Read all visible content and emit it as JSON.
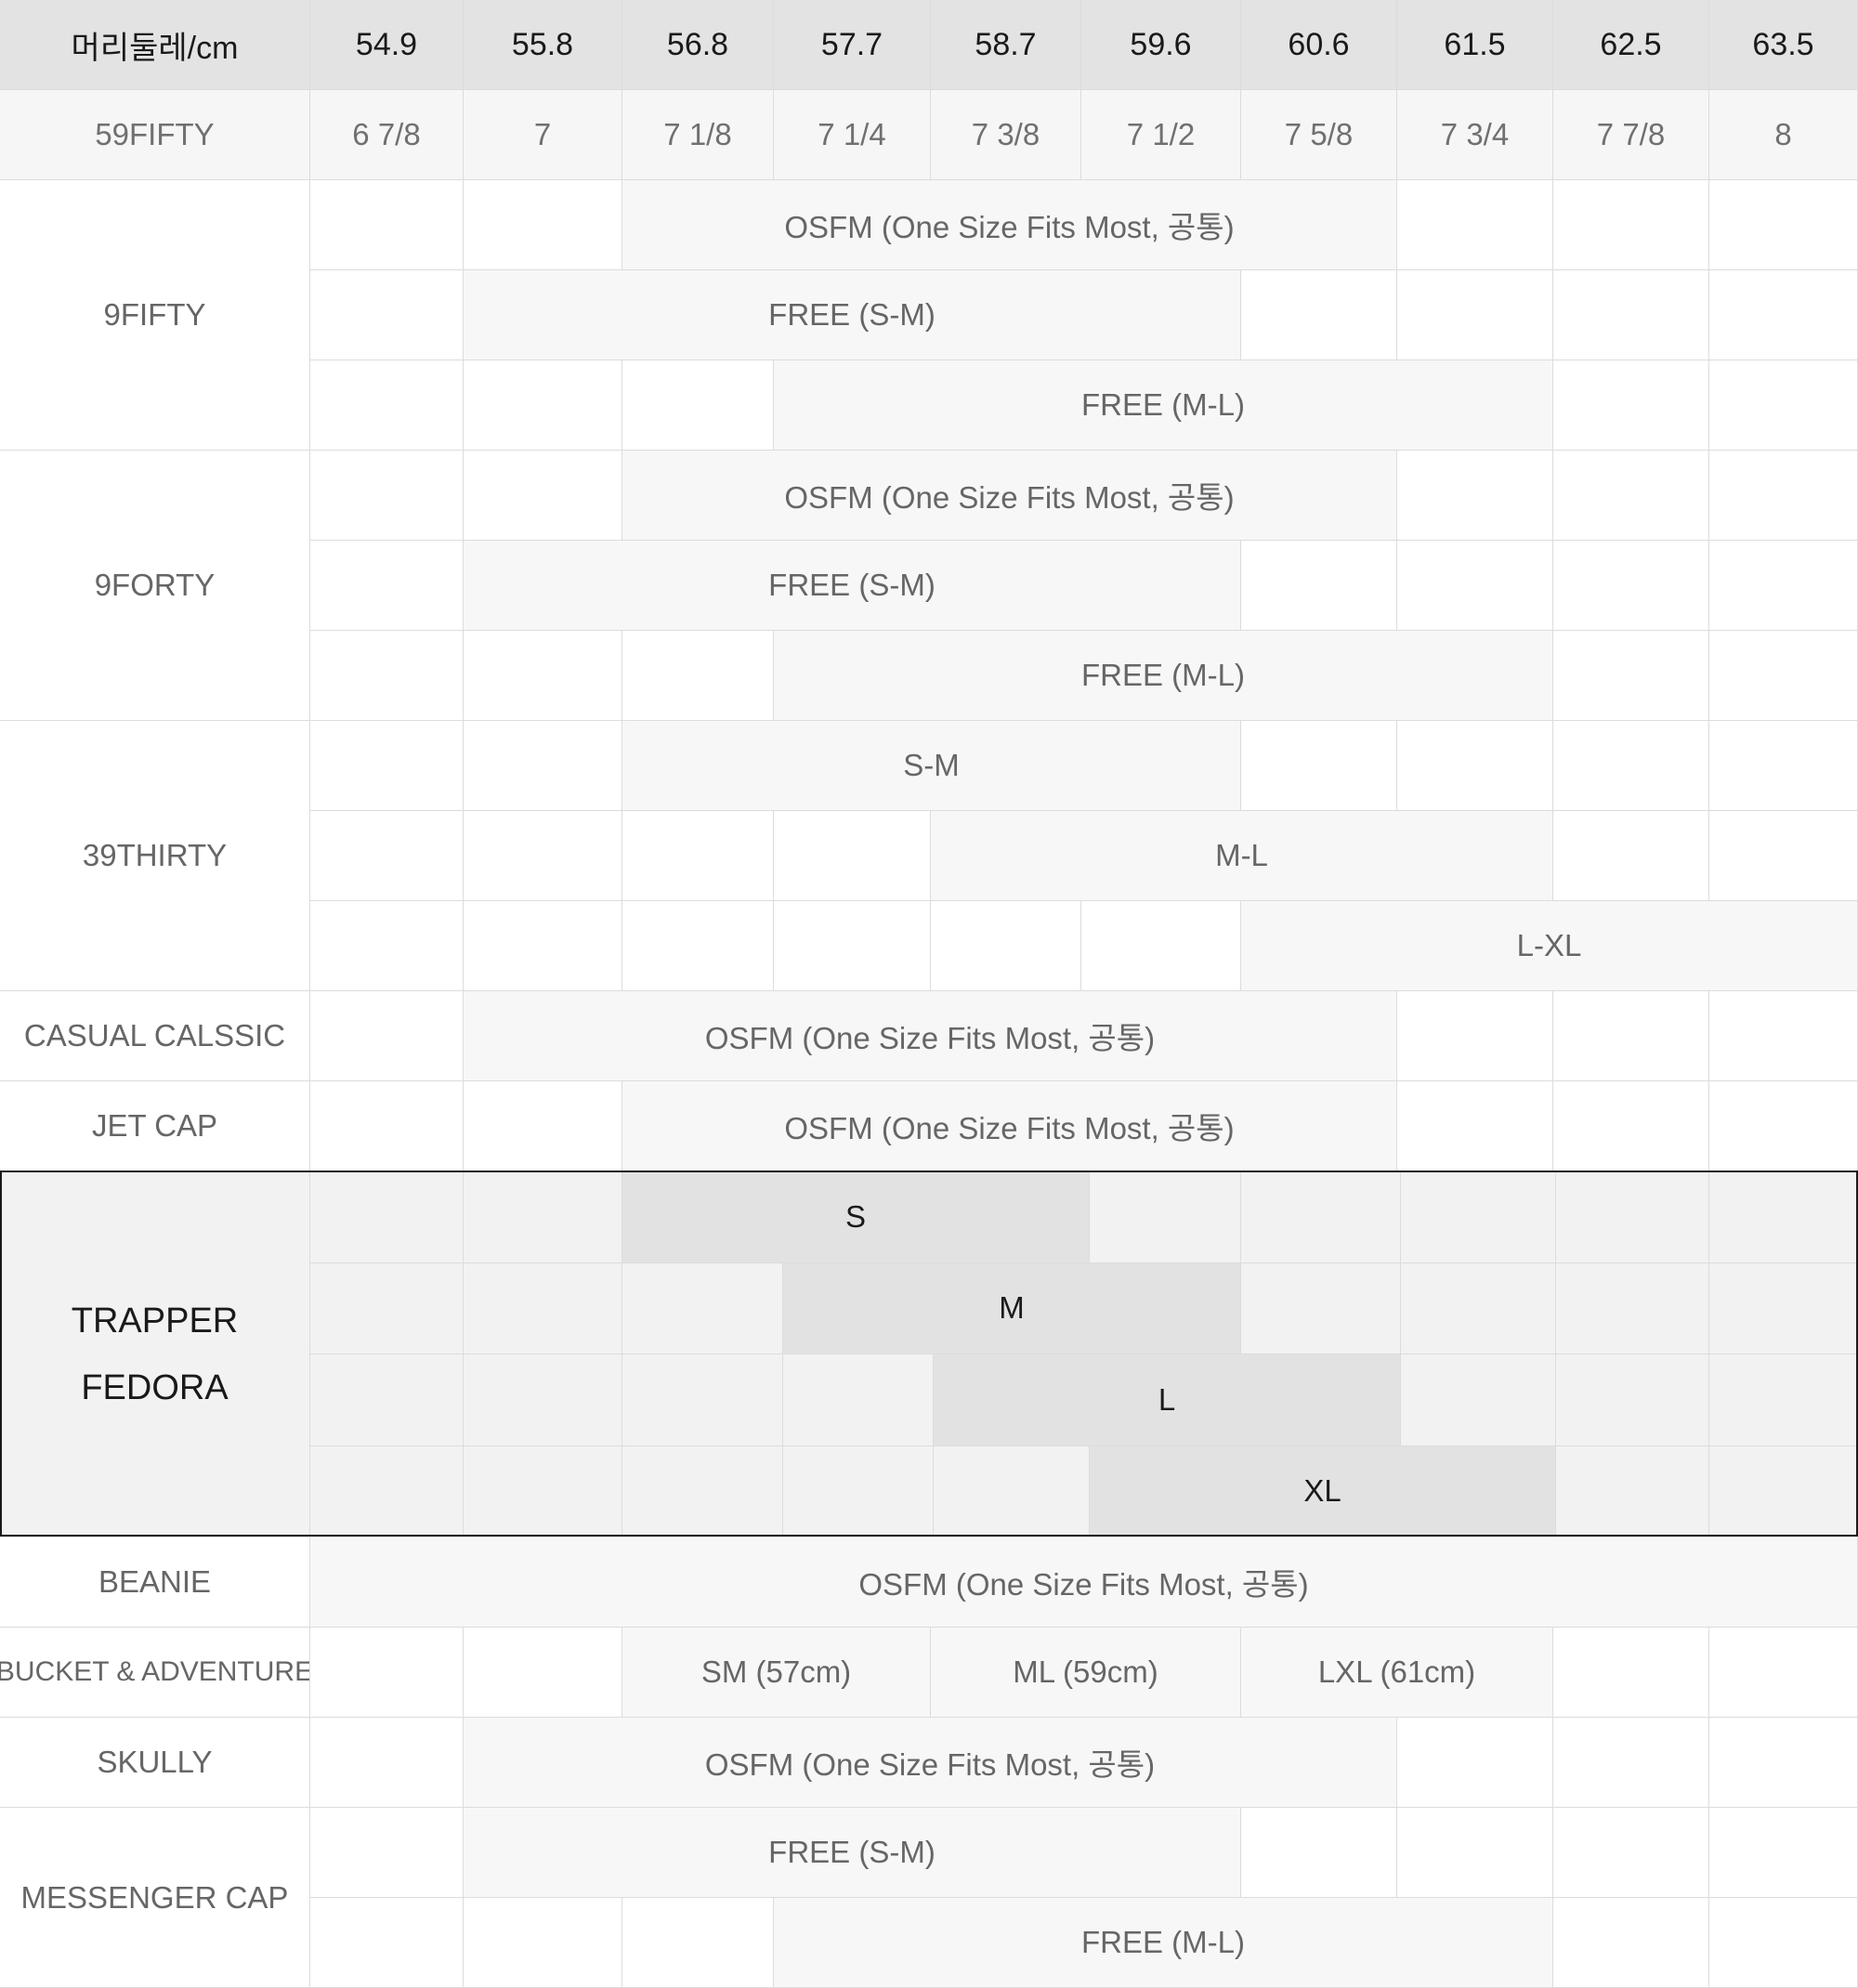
{
  "header": {
    "label": "머리둘레/cm",
    "cm": [
      "54.9",
      "55.8",
      "56.8",
      "57.7",
      "58.7",
      "59.6",
      "60.6",
      "61.5",
      "62.5",
      "63.5"
    ]
  },
  "fifty_nine_fifty": {
    "label": "59FIFTY",
    "inches": [
      "6 7/8",
      "7",
      "7 1/8",
      "7 1/4",
      "7 3/8",
      "7 1/2",
      "7 5/8",
      "7 3/4",
      "7 7/8",
      "8"
    ]
  },
  "rows": [
    {
      "label": "9FIFTY",
      "sizes": [
        {
          "text": "OSFM (One Size Fits Most, 공통)",
          "from": 2,
          "to": 6
        },
        {
          "text": "FREE (S-M)",
          "from": 1,
          "to": 5
        },
        {
          "text": "FREE (M-L)",
          "from": 3,
          "to": 7
        }
      ]
    },
    {
      "label": "9FORTY",
      "sizes": [
        {
          "text": "OSFM (One Size Fits Most, 공통)",
          "from": 2,
          "to": 6
        },
        {
          "text": "FREE (S-M)",
          "from": 1,
          "to": 5
        },
        {
          "text": "FREE (M-L)",
          "from": 3,
          "to": 7
        }
      ]
    },
    {
      "label": "39THIRTY",
      "sizes": [
        {
          "text": "S-M",
          "from": 2,
          "to": 5
        },
        {
          "text": "M-L",
          "from": 4,
          "to": 7
        },
        {
          "text": "L-XL",
          "from": 6,
          "to": 9
        }
      ]
    },
    {
      "label": "CASUAL CALSSIC",
      "sizes": [
        {
          "text": "OSFM (One Size Fits Most, 공통)",
          "from": 1,
          "to": 6
        }
      ]
    },
    {
      "label": "JET CAP",
      "sizes": [
        {
          "text": "OSFM (One Size Fits Most, 공통)",
          "from": 2,
          "to": 6
        }
      ]
    },
    {
      "label_lines": [
        "TRAPPER",
        "FEDORA"
      ],
      "trapper": true,
      "sizes": [
        {
          "text": "S",
          "from": 2,
          "to": 4
        },
        {
          "text": "M",
          "from": 3,
          "to": 5
        },
        {
          "text": "L",
          "from": 4,
          "to": 6
        },
        {
          "text": "XL",
          "from": 5,
          "to": 7
        }
      ]
    },
    {
      "label": "BEANIE",
      "sizes": [
        {
          "text": "OSFM (One Size Fits Most, 공통)",
          "from": 0,
          "to": 9
        }
      ]
    },
    {
      "label": "BUCKET & ADVENTURE",
      "small_label": true,
      "segments": [
        {
          "text": "SM (57cm)",
          "from": 2,
          "to": 3
        },
        {
          "text": "ML (59cm)",
          "from": 4,
          "to": 5
        },
        {
          "text": "LXL (61cm)",
          "from": 6,
          "to": 7
        }
      ]
    },
    {
      "label": "SKULLY",
      "sizes": [
        {
          "text": "OSFM (One Size Fits Most, 공통)",
          "from": 1,
          "to": 6
        }
      ]
    },
    {
      "label": "MESSENGER CAP",
      "sizes": [
        {
          "text": "FREE (S-M)",
          "from": 1,
          "to": 5
        },
        {
          "text": "FREE (M-L)",
          "from": 3,
          "to": 7
        }
      ]
    }
  ]
}
